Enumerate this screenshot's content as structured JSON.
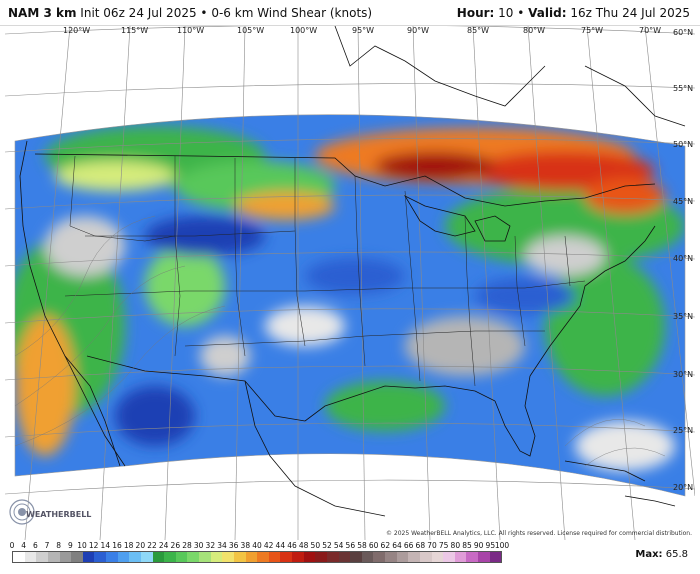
{
  "header": {
    "model": "NAM 3 km",
    "init": "Init 06z 24 Jul 2025",
    "separator": "•",
    "field": "0-6 km Wind Shear (knots)",
    "hour_label": "Hour:",
    "hour_value": "10",
    "valid_label": "Valid:",
    "valid_value": "16z Thu 24 Jul 2025"
  },
  "map": {
    "lon_labels": [
      "120°W",
      "115°W",
      "110°W",
      "105°W",
      "100°W",
      "95°W",
      "90°W",
      "85°W",
      "80°W",
      "75°W",
      "70°W"
    ],
    "lat_labels": [
      "60°N",
      "55°N",
      "50°N",
      "45°N",
      "40°N",
      "35°N",
      "30°N",
      "25°N",
      "20°N"
    ],
    "logo_text": "WEATHERBELL",
    "copyright": "© 2025 WeatherBELL Analytics, LLC. All rights reserved. License required for commercial distribution."
  },
  "colorbar": {
    "ticks": [
      "0",
      "4",
      "6",
      "7",
      "8",
      "9",
      "10",
      "12",
      "14",
      "16",
      "18",
      "20",
      "22",
      "24",
      "26",
      "28",
      "30",
      "32",
      "34",
      "36",
      "38",
      "40",
      "42",
      "44",
      "46",
      "48",
      "50",
      "52",
      "54",
      "56",
      "58",
      "60",
      "62",
      "64",
      "66",
      "68",
      "70",
      "75",
      "80",
      "85",
      "90",
      "95",
      "100"
    ],
    "colors": [
      "#ffffff",
      "#e8e8e8",
      "#cfcfcf",
      "#b5b5b5",
      "#9a9a9a",
      "#808080",
      "#1e3fb4",
      "#2b5fd2",
      "#3a7fe6",
      "#4f9fef",
      "#6bbef4",
      "#8fd8f7",
      "#2a9a3c",
      "#3cb44a",
      "#58c85a",
      "#7ad86a",
      "#a6e27a",
      "#d6ec7c",
      "#f2e26c",
      "#f2c444",
      "#f0a030",
      "#ee7a22",
      "#e85418",
      "#d83214",
      "#c01c10",
      "#a01010",
      "#8a1a1a",
      "#7a2a2a",
      "#6a3434",
      "#5a4040",
      "#6a5a5a",
      "#806c6c",
      "#968484",
      "#ac9c9c",
      "#c4b4b4",
      "#d8c8c8",
      "#e6d6d6",
      "#ecc8e6",
      "#e09cd8",
      "#c86ac4",
      "#a844a8",
      "#7a2a86"
    ],
    "max_label": "Max:",
    "max_value": "65.8"
  }
}
